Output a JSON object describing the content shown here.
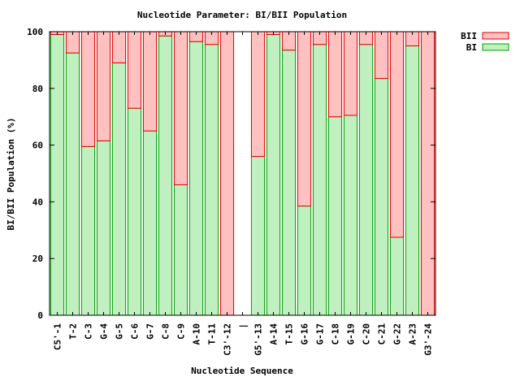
{
  "chart_data": {
    "type": "bar",
    "stacked": true,
    "title": "Nucleotide Parameter: BI/BII Population",
    "xlabel": "Nucleotide Sequence",
    "ylabel": "BI/BII Population (%)",
    "ylim": [
      0,
      100
    ],
    "yticks": [
      0,
      20,
      40,
      60,
      80,
      100
    ],
    "grid": false,
    "legend_position": "top-right",
    "categories": [
      "C5'-1",
      "T-2",
      "C-3",
      "G-4",
      "G-5",
      "C-6",
      "G-7",
      "C-8",
      "C-9",
      "A-10",
      "T-11",
      "C3'-12",
      "|",
      "G5'-13",
      "A-14",
      "T-15",
      "G-16",
      "G-17",
      "C-18",
      "G-19",
      "C-20",
      "C-21",
      "G-22",
      "A-23",
      "G3'-24"
    ],
    "series": [
      {
        "name": "BII",
        "color": "#ffc0c0",
        "edge": "#e00000",
        "values": [
          1,
          7.5,
          40.5,
          38.5,
          11,
          27,
          35,
          1.5,
          54,
          3.5,
          4.5,
          100,
          null,
          44,
          1,
          6.5,
          61.5,
          4.5,
          30,
          29.5,
          4.5,
          16.5,
          72.5,
          5,
          100
        ]
      },
      {
        "name": "BI",
        "color": "#c0f0c0",
        "edge": "#00a000",
        "values": [
          99,
          92.5,
          59.5,
          61.5,
          89,
          73,
          65,
          98.5,
          46,
          96.5,
          95.5,
          0,
          null,
          56,
          99,
          93.5,
          38.5,
          95.5,
          70,
          70.5,
          95.5,
          83.5,
          27.5,
          95,
          0
        ]
      }
    ]
  }
}
